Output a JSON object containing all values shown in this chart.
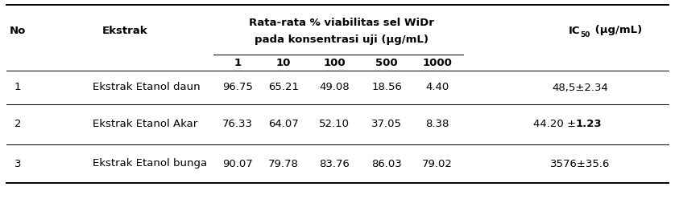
{
  "title_line1": "Rata-rata % viabilitas sel WiDr",
  "title_line2": "pada konsentrasi uji (µg/mL)",
  "ic50_header": "IC",
  "ic50_sub": "50",
  "ic50_unit": " (µg/mL)",
  "rows": [
    [
      "1",
      "Ekstrak Etanol daun",
      "96.75",
      "65.21",
      "49.08",
      "18.56",
      "4.40",
      "48,5±2.34",
      false
    ],
    [
      "2",
      "Ekstrak Etanol Akar",
      "76.33",
      "64.07",
      "52.10",
      "37.05",
      "8.38",
      "44.20 ±1.23",
      true
    ],
    [
      "3",
      "Ekstrak Etanol bunga",
      "90.07",
      "79.78",
      "83.76",
      "86.03",
      "79.02",
      "3576±35.6",
      false
    ]
  ],
  "conc_labels": [
    "1",
    "10",
    "100",
    "500",
    "1000"
  ],
  "bg_color": "#ffffff",
  "text_color": "#000000",
  "fs": 9.5,
  "fs_bold": 9.5,
  "line_thick": 1.4,
  "line_thin": 0.7
}
